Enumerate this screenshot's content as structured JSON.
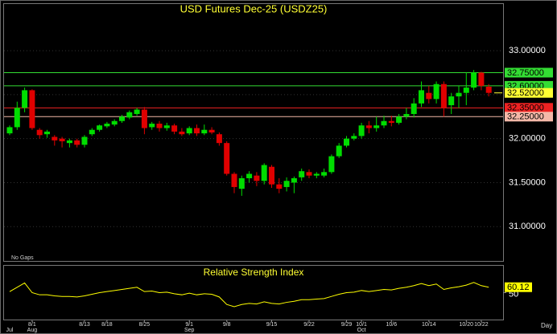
{
  "chart_data": [
    {
      "type": "candlestick",
      "title": "USD Futures Dec-25 (USDZ25)",
      "note": "No Gaps",
      "x_label": "Day",
      "up_color": "#00dd00",
      "down_color": "#e00000",
      "categories": [
        null,
        null,
        null,
        "8/1",
        null,
        null,
        null,
        null,
        null,
        null,
        "8/13",
        null,
        null,
        "8/18",
        null,
        null,
        null,
        null,
        "8/25",
        null,
        null,
        null,
        null,
        null,
        "9/1",
        null,
        null,
        null,
        null,
        "9/8",
        null,
        null,
        null,
        null,
        null,
        "9/15",
        null,
        null,
        null,
        null,
        "9/22",
        null,
        null,
        null,
        null,
        "9/29",
        null,
        "10/1",
        null,
        null,
        null,
        "10/6",
        null,
        null,
        null,
        null,
        "10/14",
        null,
        null,
        null,
        null,
        "10/20",
        null,
        "10/22",
        null
      ],
      "months": [
        "Jul",
        null,
        null,
        "Aug",
        null,
        null,
        null,
        null,
        null,
        null,
        null,
        null,
        null,
        null,
        null,
        null,
        null,
        null,
        null,
        null,
        null,
        null,
        null,
        null,
        "Sep",
        null,
        null,
        null,
        null,
        null,
        null,
        null,
        null,
        null,
        null,
        null,
        null,
        null,
        null,
        null,
        null,
        null,
        null,
        null,
        null,
        null,
        null,
        "Oct",
        null,
        null,
        null,
        null,
        null,
        null,
        null,
        null,
        null,
        null,
        null,
        null,
        null,
        null,
        null,
        null,
        null
      ],
      "open": [
        32.06,
        32.13,
        32.35,
        32.55,
        32.1,
        32.05,
        32.02,
        32.0,
        31.95,
        31.98,
        31.93,
        32.05,
        32.1,
        32.14,
        32.16,
        32.2,
        32.24,
        32.28,
        32.33,
        32.13,
        32.17,
        32.12,
        32.15,
        32.08,
        32.06,
        32.12,
        32.06,
        32.1,
        32.05,
        31.95,
        31.6,
        31.43,
        31.55,
        31.58,
        31.52,
        31.68,
        31.48,
        31.45,
        31.5,
        31.56,
        31.62,
        31.58,
        31.58,
        31.62,
        31.8,
        31.92,
        32.0,
        32.03,
        32.15,
        32.12,
        32.15,
        32.2,
        32.18,
        32.25,
        32.28,
        32.4,
        32.52,
        32.45,
        32.62,
        32.38,
        32.48,
        32.52,
        32.58,
        32.75,
        32.59
      ],
      "high": [
        32.15,
        32.42,
        32.58,
        32.56,
        32.12,
        32.1,
        32.04,
        32.02,
        32.0,
        32.0,
        32.04,
        32.12,
        32.16,
        32.19,
        32.22,
        32.27,
        32.32,
        32.35,
        32.36,
        32.19,
        32.2,
        32.18,
        32.17,
        32.12,
        32.14,
        32.16,
        32.16,
        32.13,
        32.07,
        31.97,
        31.62,
        31.58,
        31.63,
        31.62,
        31.72,
        31.7,
        31.55,
        31.56,
        31.57,
        31.66,
        31.65,
        31.62,
        31.66,
        31.82,
        31.95,
        32.03,
        32.06,
        32.18,
        32.2,
        32.25,
        32.26,
        32.26,
        32.28,
        32.35,
        32.46,
        32.65,
        32.6,
        32.65,
        32.65,
        32.52,
        32.6,
        32.75,
        32.78,
        32.76,
        32.62
      ],
      "low": [
        32.04,
        32.1,
        32.3,
        32.1,
        32.0,
        32.01,
        31.92,
        31.9,
        31.9,
        31.9,
        31.9,
        32.03,
        32.08,
        32.12,
        32.14,
        32.18,
        32.22,
        32.26,
        32.05,
        32.1,
        32.08,
        32.09,
        32.05,
        32.03,
        32.04,
        32.03,
        32.04,
        32.05,
        31.92,
        31.58,
        31.38,
        31.35,
        31.5,
        31.46,
        31.48,
        31.44,
        31.38,
        31.4,
        31.38,
        31.52,
        31.55,
        31.55,
        31.56,
        31.6,
        31.78,
        31.9,
        31.98,
        32.0,
        32.06,
        32.08,
        32.12,
        32.14,
        32.16,
        32.22,
        32.24,
        32.36,
        32.4,
        32.4,
        32.25,
        32.28,
        32.35,
        32.38,
        32.55,
        32.55,
        32.48
      ],
      "close": [
        32.13,
        32.35,
        32.55,
        32.12,
        32.04,
        32.08,
        31.98,
        31.97,
        31.98,
        31.93,
        32.02,
        32.1,
        32.15,
        32.17,
        32.2,
        32.25,
        32.3,
        32.33,
        32.12,
        32.17,
        32.12,
        32.15,
        32.08,
        32.05,
        32.12,
        32.06,
        32.1,
        32.07,
        31.95,
        31.6,
        31.45,
        31.55,
        31.6,
        31.52,
        31.7,
        31.48,
        31.43,
        31.52,
        31.55,
        31.63,
        31.58,
        31.6,
        31.62,
        31.8,
        31.92,
        32.0,
        32.03,
        32.15,
        32.12,
        32.15,
        32.2,
        32.18,
        32.25,
        32.28,
        32.4,
        32.55,
        32.45,
        32.62,
        32.35,
        32.48,
        32.52,
        32.58,
        32.75,
        32.6,
        32.52
      ],
      "ylim": [
        30.61,
        33.53
      ],
      "yticks": [
        {
          "value": 31.0,
          "label": "31.00000"
        },
        {
          "value": 31.5,
          "label": "31.50000"
        },
        {
          "value": 32.0,
          "label": "32.00000"
        },
        {
          "value": 32.5,
          "label": "32.50000"
        },
        {
          "value": 33.0,
          "label": "33.00000"
        }
      ],
      "levels": [
        {
          "value": 32.75,
          "label": "32.75000",
          "color": "#33dd33"
        },
        {
          "value": 32.6,
          "label": "32.60000",
          "color": "#33dd33"
        },
        {
          "value": 32.35,
          "label": "32.35000",
          "color": "#ee2222"
        },
        {
          "value": 32.25,
          "label": "32.25000",
          "color": "#f4b8a8"
        }
      ],
      "last_price": {
        "value": 32.52,
        "label": "32.52000",
        "color": "#ffff33"
      }
    },
    {
      "type": "line",
      "title": "Relative Strength Index",
      "color": "#ffff00",
      "values": [
        52,
        60,
        68,
        50,
        46,
        46,
        44,
        43,
        43,
        42,
        44,
        47,
        50,
        52,
        54,
        56,
        58,
        60,
        52,
        53,
        50,
        51,
        48,
        46,
        49,
        46,
        48,
        47,
        42,
        28,
        24,
        28,
        30,
        29,
        33,
        30,
        29,
        32,
        34,
        37,
        37,
        38,
        39,
        43,
        47,
        50,
        51,
        54,
        52,
        54,
        56,
        55,
        58,
        60,
        63,
        67,
        63,
        66,
        56,
        59,
        61,
        64,
        69,
        63,
        60.12
      ],
      "ylim": [
        0,
        100
      ],
      "yticks": [
        50
      ]
    }
  ]
}
